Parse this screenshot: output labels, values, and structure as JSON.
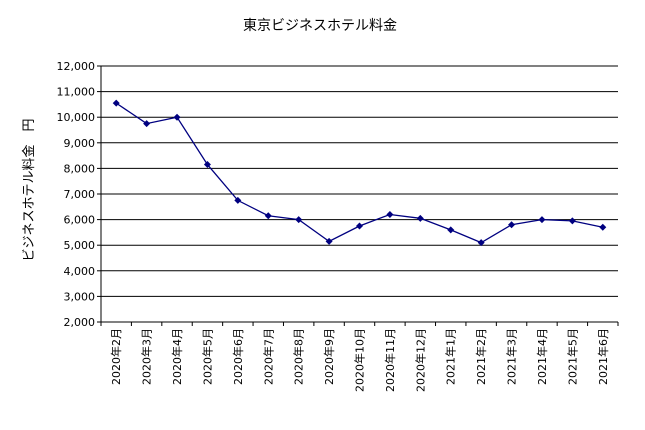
{
  "chart_data": {
    "type": "line",
    "title": "東京ビジネスホテル料金",
    "xlabel": "",
    "ylabel": "ビジネスホテル料金　円",
    "ylim": [
      2000,
      12000
    ],
    "ytick_step": 1000,
    "yticks": [
      "2,000",
      "3,000",
      "4,000",
      "5,000",
      "6,000",
      "7,000",
      "8,000",
      "9,000",
      "10,000",
      "11,000",
      "12,000"
    ],
    "grid": true,
    "legend": "none",
    "categories": [
      "2020年2月",
      "2020年3月",
      "2020年4月",
      "2020年5月",
      "2020年6月",
      "2020年7月",
      "2020年8月",
      "2020年9月",
      "2020年10月",
      "2020年11月",
      "2020年12月",
      "2021年1月",
      "2021年2月",
      "2021年3月",
      "2021年4月",
      "2021年5月",
      "2021年6月"
    ],
    "series": [
      {
        "color": "#000080",
        "values": [
          10550,
          9750,
          10000,
          8150,
          6750,
          6150,
          6000,
          5150,
          5750,
          6200,
          6050,
          5600,
          5100,
          5800,
          6000,
          5950,
          5700
        ]
      }
    ]
  }
}
